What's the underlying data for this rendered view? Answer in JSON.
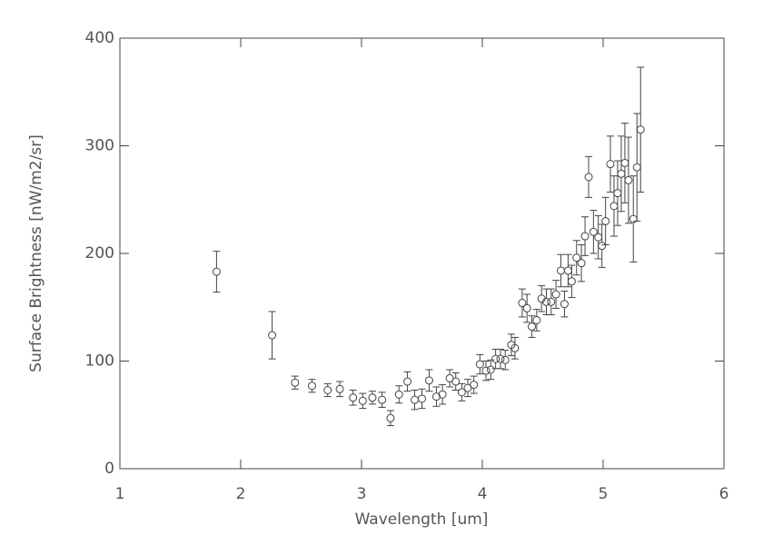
{
  "chart_data": {
    "type": "scatter",
    "x_label": "Wavelength [um]",
    "y_label": "Surface Brightness [nW/m2/sr]",
    "x": [
      1.8,
      2.26,
      2.45,
      2.59,
      2.72,
      2.82,
      2.93,
      3.01,
      3.09,
      3.17,
      3.24,
      3.31,
      3.38,
      3.44,
      3.5,
      3.56,
      3.62,
      3.67,
      3.73,
      3.78,
      3.83,
      3.88,
      3.93,
      3.98,
      4.03,
      4.07,
      4.11,
      4.15,
      4.19,
      4.24,
      4.27,
      4.33,
      4.37,
      4.41,
      4.45,
      4.49,
      4.53,
      4.57,
      4.61,
      4.65,
      4.68,
      4.71,
      4.74,
      4.78,
      4.82,
      4.85,
      4.88,
      4.92,
      4.96,
      4.99,
      5.02,
      5.06,
      5.09,
      5.12,
      5.15,
      5.18,
      5.21,
      5.25,
      5.28,
      5.31
    ],
    "values": [
      183,
      124,
      80,
      77,
      73,
      74,
      66,
      63,
      66,
      64,
      47,
      69,
      81,
      64,
      65,
      82,
      67,
      69,
      84,
      81,
      71,
      75,
      78,
      97,
      91,
      92,
      102,
      102,
      101,
      115,
      112,
      154,
      149,
      132,
      138,
      158,
      155,
      155,
      162,
      184,
      153,
      184,
      174,
      196,
      191,
      216,
      271,
      220,
      215,
      207,
      230,
      283,
      244,
      256,
      274,
      284,
      268,
      232,
      280,
      315
    ],
    "errors": [
      19,
      22,
      6,
      6,
      6,
      7,
      7,
      7,
      6,
      7,
      7,
      8,
      9,
      9,
      9,
      10,
      9,
      9,
      8,
      8,
      8,
      8,
      8,
      9,
      9,
      9,
      9,
      9,
      9,
      10,
      10,
      13,
      13,
      10,
      10,
      12,
      12,
      12,
      13,
      15,
      12,
      15,
      15,
      16,
      17,
      18,
      19,
      20,
      20,
      20,
      22,
      26,
      28,
      30,
      35,
      37,
      40,
      40,
      50,
      58
    ],
    "color": "#444444",
    "xlim": [
      1,
      6
    ],
    "xticks": [
      1,
      2,
      3,
      4,
      5,
      6
    ],
    "ylim": [
      0,
      400
    ],
    "yticks": [
      0,
      100,
      200,
      300,
      400
    ]
  }
}
